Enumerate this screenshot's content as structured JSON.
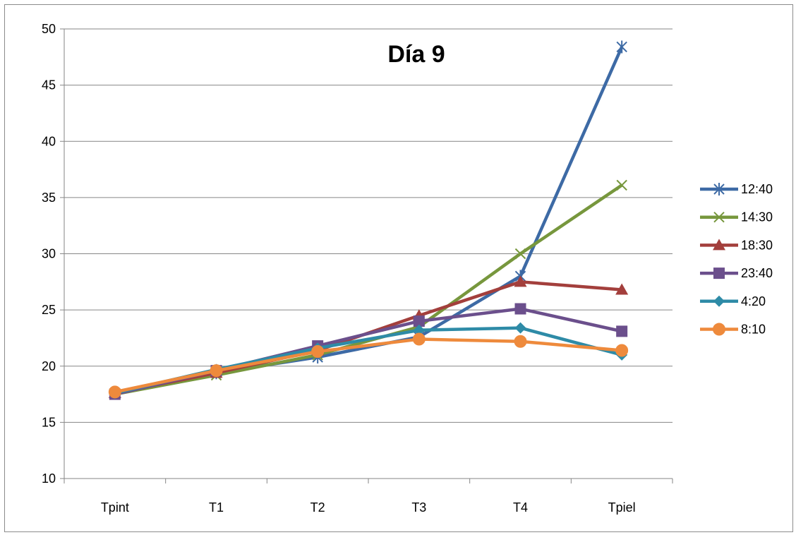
{
  "chart_data": {
    "type": "line",
    "title": "Día 9",
    "xlabel": "",
    "ylabel": "",
    "categories": [
      "Tpint",
      "T1",
      "T2",
      "T3",
      "T4",
      "Tpiel"
    ],
    "ylim": [
      10,
      50
    ],
    "yticks": [
      10,
      15,
      20,
      25,
      30,
      35,
      40,
      45,
      50
    ],
    "grid": "horizontal",
    "legend_position": "right",
    "series": [
      {
        "name": "12:40",
        "color": "#3D6AA5",
        "marker": "asterisk",
        "values": [
          17.6,
          19.4,
          20.8,
          22.6,
          28.0,
          48.4
        ]
      },
      {
        "name": "14:30",
        "color": "#77973D",
        "marker": "x",
        "values": [
          17.5,
          19.2,
          21.0,
          23.5,
          30.0,
          36.1
        ]
      },
      {
        "name": "18:30",
        "color": "#A33F3C",
        "marker": "triangle",
        "values": [
          17.6,
          19.4,
          21.4,
          24.5,
          27.5,
          26.8
        ]
      },
      {
        "name": "23:40",
        "color": "#6B4F8C",
        "marker": "square",
        "values": [
          17.5,
          19.6,
          21.8,
          24.0,
          25.1,
          23.1
        ]
      },
      {
        "name": "4:20",
        "color": "#2E8BA7",
        "marker": "diamond",
        "values": [
          17.6,
          19.7,
          21.6,
          23.2,
          23.4,
          21.0
        ]
      },
      {
        "name": "8:10",
        "color": "#EE8A3C",
        "marker": "circle",
        "values": [
          17.7,
          19.6,
          21.3,
          22.4,
          22.2,
          21.4
        ]
      }
    ]
  }
}
